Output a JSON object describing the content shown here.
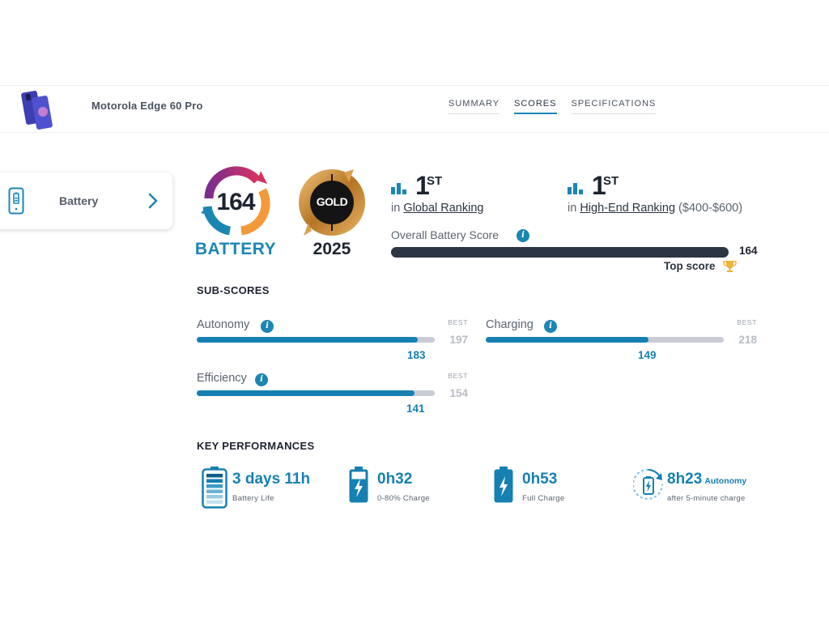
{
  "header": {
    "device_name": "Motorola Edge 60 Pro",
    "nav": [
      {
        "label": "SUMMARY",
        "active": false
      },
      {
        "label": "SCORES",
        "active": true
      },
      {
        "label": "SPECIFICATIONS",
        "active": false
      }
    ]
  },
  "category_card": {
    "label": "Battery",
    "icon": "battery-phone-icon"
  },
  "score_badge": {
    "score": "164",
    "category": "BATTERY"
  },
  "label_badge": {
    "label": "GOLD",
    "year": "2025"
  },
  "rankings": [
    {
      "position": "1",
      "suffix": "ST",
      "prefix": "in",
      "link": "Global Ranking",
      "extra": ""
    },
    {
      "position": "1",
      "suffix": "ST",
      "prefix": "in",
      "link": "High-End Ranking",
      "extra": "($400-$600)"
    }
  ],
  "overall": {
    "label": "Overall Battery Score",
    "value": "164",
    "fill_percent": 100,
    "top_score_label": "Top score"
  },
  "subscores": {
    "title": "SUB-SCORES",
    "best_label": "BEST",
    "items": [
      {
        "label": "Autonomy",
        "value": "183",
        "best": "197",
        "fill_fraction": 0.929
      },
      {
        "label": "Charging",
        "value": "149",
        "best": "218",
        "fill_fraction": 0.683
      },
      {
        "label": "Efficiency",
        "value": "141",
        "best": "154",
        "fill_fraction": 0.915
      }
    ]
  },
  "key_performances": {
    "title": "KEY PERFORMANCES",
    "items": [
      {
        "value": "3 days 11h",
        "suffix": "",
        "sub": "Battery Life",
        "icon": "battery-levels-icon"
      },
      {
        "value": "0h32",
        "suffix": "",
        "sub": "0-80% Charge",
        "icon": "battery-charging-icon"
      },
      {
        "value": "0h53",
        "suffix": "",
        "sub": "Full Charge",
        "icon": "battery-full-charge-icon"
      },
      {
        "value": "8h23",
        "suffix": "Autonomy",
        "sub": "after 5-minute charge",
        "icon": "quick-charge-icon"
      }
    ]
  },
  "colors": {
    "accent": "#1c86b3",
    "dark": "#1d2430",
    "track": "#c9ccd6",
    "gold": "#c88a2e"
  }
}
